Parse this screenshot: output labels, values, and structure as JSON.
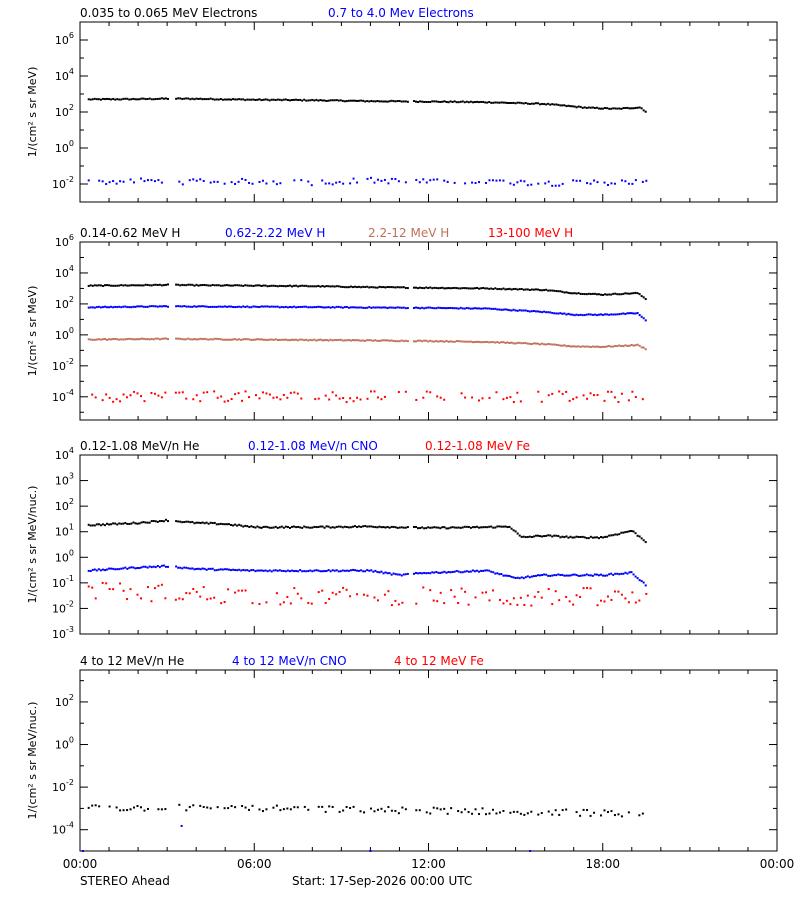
{
  "footer": {
    "spacecraft": "STEREO Ahead",
    "start": "Start: 17-Sep-2026 00:00 UTC"
  },
  "x_ticks": [
    "00:00",
    "06:00",
    "12:00",
    "18:00",
    "00:00"
  ],
  "colors": {
    "black": "#000000",
    "blue": "#0000ff",
    "salmon": "#c0705a",
    "red": "#ff0000"
  },
  "chart_data": [
    {
      "type": "scatter",
      "ylabel": "1/(cm² s sr MeV)",
      "ylog_range": [
        -3.0,
        7.0
      ],
      "y_ticks": [
        -2,
        0,
        2,
        4,
        6
      ],
      "x_hours": [
        0,
        24
      ],
      "series": [
        {
          "name": "0.035 to 0.065 MeV Electrons",
          "color": "#000000",
          "x": [
            0.3,
            2,
            3,
            4,
            6,
            8,
            10,
            12,
            14,
            16,
            17.5,
            18.5,
            19.3,
            19.5
          ],
          "y": [
            500,
            520,
            550,
            540,
            480,
            450,
            400,
            380,
            350,
            280,
            170,
            150,
            180,
            100
          ]
        },
        {
          "name": "0.7 to 4.0 Mev Electrons",
          "color": "#0000ff",
          "x": [
            0.3,
            2,
            4,
            6,
            8,
            10,
            12,
            14,
            16,
            18,
            19.5
          ],
          "y": [
            0.012,
            0.015,
            0.013,
            0.014,
            0.012,
            0.016,
            0.013,
            0.014,
            0.011,
            0.012,
            0.014
          ],
          "jitter": 0.15
        }
      ]
    },
    {
      "type": "scatter",
      "ylabel": "1/(cm² s sr MeV)",
      "ylog_range": [
        -5.5,
        6.0
      ],
      "y_ticks": [
        -4,
        -2,
        0,
        2,
        4,
        6
      ],
      "x_hours": [
        0,
        24
      ],
      "series": [
        {
          "name": "0.14-0.62 MeV H",
          "color": "#000000",
          "x": [
            0.3,
            2,
            3,
            4,
            6,
            8,
            10,
            12,
            14,
            16,
            17,
            18,
            19.2,
            19.5
          ],
          "y": [
            1500,
            1600,
            1700,
            1600,
            1500,
            1400,
            1200,
            1100,
            1000,
            800,
            500,
            400,
            500,
            200
          ]
        },
        {
          "name": "0.62-2.22 MeV H",
          "color": "#0000ff",
          "x": [
            0.3,
            3,
            6,
            9,
            12,
            14,
            16,
            17,
            18,
            19.2,
            19.5
          ],
          "y": [
            60,
            70,
            65,
            60,
            55,
            50,
            30,
            20,
            20,
            25,
            8
          ]
        },
        {
          "name": "2.2-12 MeV H",
          "color": "#c0705a",
          "x": [
            0.3,
            3,
            6,
            9,
            12,
            14,
            16,
            17,
            18,
            19.2,
            19.5
          ],
          "y": [
            0.5,
            0.55,
            0.5,
            0.45,
            0.4,
            0.35,
            0.25,
            0.18,
            0.17,
            0.22,
            0.12
          ]
        },
        {
          "name": "13-100 MeV H",
          "color": "#ff0000",
          "x": [
            0.3,
            3,
            6,
            9,
            12,
            15,
            18,
            19.5
          ],
          "y": [
            0.0001,
            0.00012,
            0.0001,
            0.0001,
            0.00012,
            0.0001,
            0.0001,
            0.0001
          ],
          "jitter": 0.35
        }
      ]
    },
    {
      "type": "scatter",
      "ylabel": "1/(cm² s sr MeV/nuc.)",
      "ylog_range": [
        -3.0,
        4.0
      ],
      "y_ticks": [
        -3,
        -2,
        -1,
        0,
        1,
        2,
        3,
        4
      ],
      "x_hours": [
        0,
        24
      ],
      "series": [
        {
          "name": "0.12-1.08 MeV/n He",
          "color": "#000000",
          "x": [
            0.3,
            2,
            3,
            4,
            5,
            6,
            8,
            10,
            12,
            14,
            14.8,
            15.2,
            16,
            17,
            18,
            19,
            19.5
          ],
          "y": [
            18,
            22,
            28,
            22,
            20,
            15,
            15,
            16,
            14,
            15,
            16,
            6,
            7,
            6,
            6,
            11,
            4
          ]
        },
        {
          "name": "0.12-1.08 MeV/n CNO",
          "color": "#0000ff",
          "x": [
            0.3,
            2,
            3,
            4,
            6,
            8,
            10,
            11,
            12,
            14,
            15,
            16,
            18,
            19,
            19.5
          ],
          "y": [
            0.3,
            0.4,
            0.45,
            0.35,
            0.3,
            0.3,
            0.3,
            0.2,
            0.25,
            0.3,
            0.15,
            0.2,
            0.2,
            0.25,
            0.08
          ]
        },
        {
          "name": "0.12-1.08 MeV Fe",
          "color": "#ff0000",
          "x": [
            0.3,
            3,
            6,
            9,
            12,
            15,
            18,
            19.5
          ],
          "y": [
            0.05,
            0.04,
            0.03,
            0.03,
            0.03,
            0.025,
            0.03,
            0.02
          ],
          "jitter": 0.35
        }
      ]
    },
    {
      "type": "scatter",
      "ylabel": "1/(cm² s sr MeV/nuc.)",
      "ylog_range": [
        -5.0,
        3.5
      ],
      "y_ticks": [
        -4,
        -2,
        0,
        2
      ],
      "x_hours": [
        0,
        24
      ],
      "series": [
        {
          "name": "4 to 12 MeV/n He",
          "color": "#000000",
          "x": [
            0.3,
            3,
            6,
            9,
            12,
            15,
            18,
            19.5
          ],
          "y": [
            0.001,
            0.0011,
            0.001,
            0.0009,
            0.0008,
            0.0007,
            0.0006,
            0.0004
          ],
          "jitter": 0.15
        },
        {
          "name": "4 to 12 MeV/n CNO",
          "color": "#0000ff",
          "x": [
            0.1,
            3.5,
            10,
            15.5
          ],
          "y": [
            1e-05,
            0.00015,
            1e-05,
            1e-05
          ]
        },
        {
          "name": "4 to 12 MeV Fe",
          "color": "#ff0000",
          "x": [],
          "y": []
        }
      ]
    }
  ]
}
